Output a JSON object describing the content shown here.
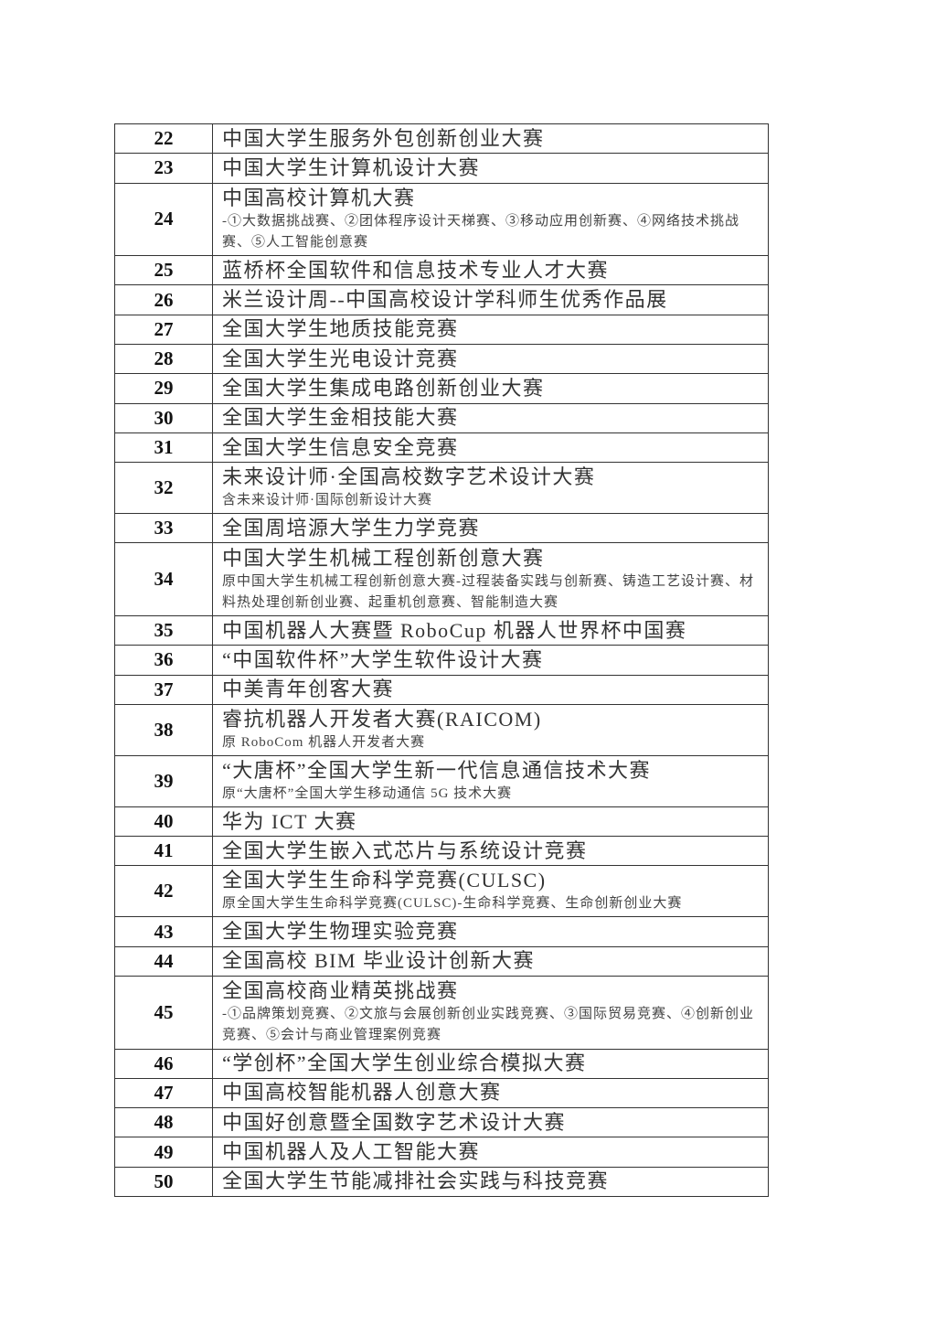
{
  "rows": [
    {
      "num": "22",
      "name": "中国大学生服务外包创新创业大赛"
    },
    {
      "num": "23",
      "name": "中国大学生计算机设计大赛"
    },
    {
      "num": "24",
      "name": "中国高校计算机大赛",
      "note": "-①大数据挑战赛、②团体程序设计天梯赛、③移动应用创新赛、④网络技术挑战赛、⑤人工智能创意赛"
    },
    {
      "num": "25",
      "name": "蓝桥杯全国软件和信息技术专业人才大赛"
    },
    {
      "num": "26",
      "name": "米兰设计周--中国高校设计学科师生优秀作品展"
    },
    {
      "num": "27",
      "name": "全国大学生地质技能竞赛"
    },
    {
      "num": "28",
      "name": "全国大学生光电设计竞赛"
    },
    {
      "num": "29",
      "name": "全国大学生集成电路创新创业大赛"
    },
    {
      "num": "30",
      "name": "全国大学生金相技能大赛"
    },
    {
      "num": "31",
      "name": "全国大学生信息安全竞赛"
    },
    {
      "num": "32",
      "name": "未来设计师·全国高校数字艺术设计大赛",
      "note": "含未来设计师·国际创新设计大赛"
    },
    {
      "num": "33",
      "name": "全国周培源大学生力学竞赛"
    },
    {
      "num": "34",
      "name": "中国大学生机械工程创新创意大赛",
      "note": "原中国大学生机械工程创新创意大赛-过程装备实践与创新赛、铸造工艺设计赛、材料热处理创新创业赛、起重机创意赛、智能制造大赛"
    },
    {
      "num": "35",
      "name": "中国机器人大赛暨 RoboCup 机器人世界杯中国赛"
    },
    {
      "num": "36",
      "name": "“中国软件杯”大学生软件设计大赛"
    },
    {
      "num": "37",
      "name": "中美青年创客大赛"
    },
    {
      "num": "38",
      "name": "睿抗机器人开发者大赛(RAICOM)",
      "note": "原 RoboCom 机器人开发者大赛"
    },
    {
      "num": "39",
      "name": "“大唐杯”全国大学生新一代信息通信技术大赛",
      "note": "原“大唐杯”全国大学生移动通信 5G 技术大赛"
    },
    {
      "num": "40",
      "name": "华为 ICT 大赛"
    },
    {
      "num": "41",
      "name": "全国大学生嵌入式芯片与系统设计竞赛"
    },
    {
      "num": "42",
      "name": "全国大学生生命科学竞赛(CULSC)",
      "note": "原全国大学生生命科学竞赛(CULSC)-生命科学竞赛、生命创新创业大赛"
    },
    {
      "num": "43",
      "name": "全国大学生物理实验竞赛"
    },
    {
      "num": "44",
      "name": "全国高校 BIM 毕业设计创新大赛"
    },
    {
      "num": "45",
      "name": "全国高校商业精英挑战赛",
      "note": "-①品牌策划竞赛、②文旅与会展创新创业实践竞赛、③国际贸易竞赛、④创新创业竞赛、⑤会计与商业管理案例竞赛"
    },
    {
      "num": "46",
      "name": "“学创杯”全国大学生创业综合模拟大赛"
    },
    {
      "num": "47",
      "name": "中国高校智能机器人创意大赛"
    },
    {
      "num": "48",
      "name": "中国好创意暨全国数字艺术设计大赛"
    },
    {
      "num": "49",
      "name": "中国机器人及人工智能大赛"
    },
    {
      "num": "50",
      "name": "全国大学生节能减排社会实践与科技竞赛"
    }
  ]
}
